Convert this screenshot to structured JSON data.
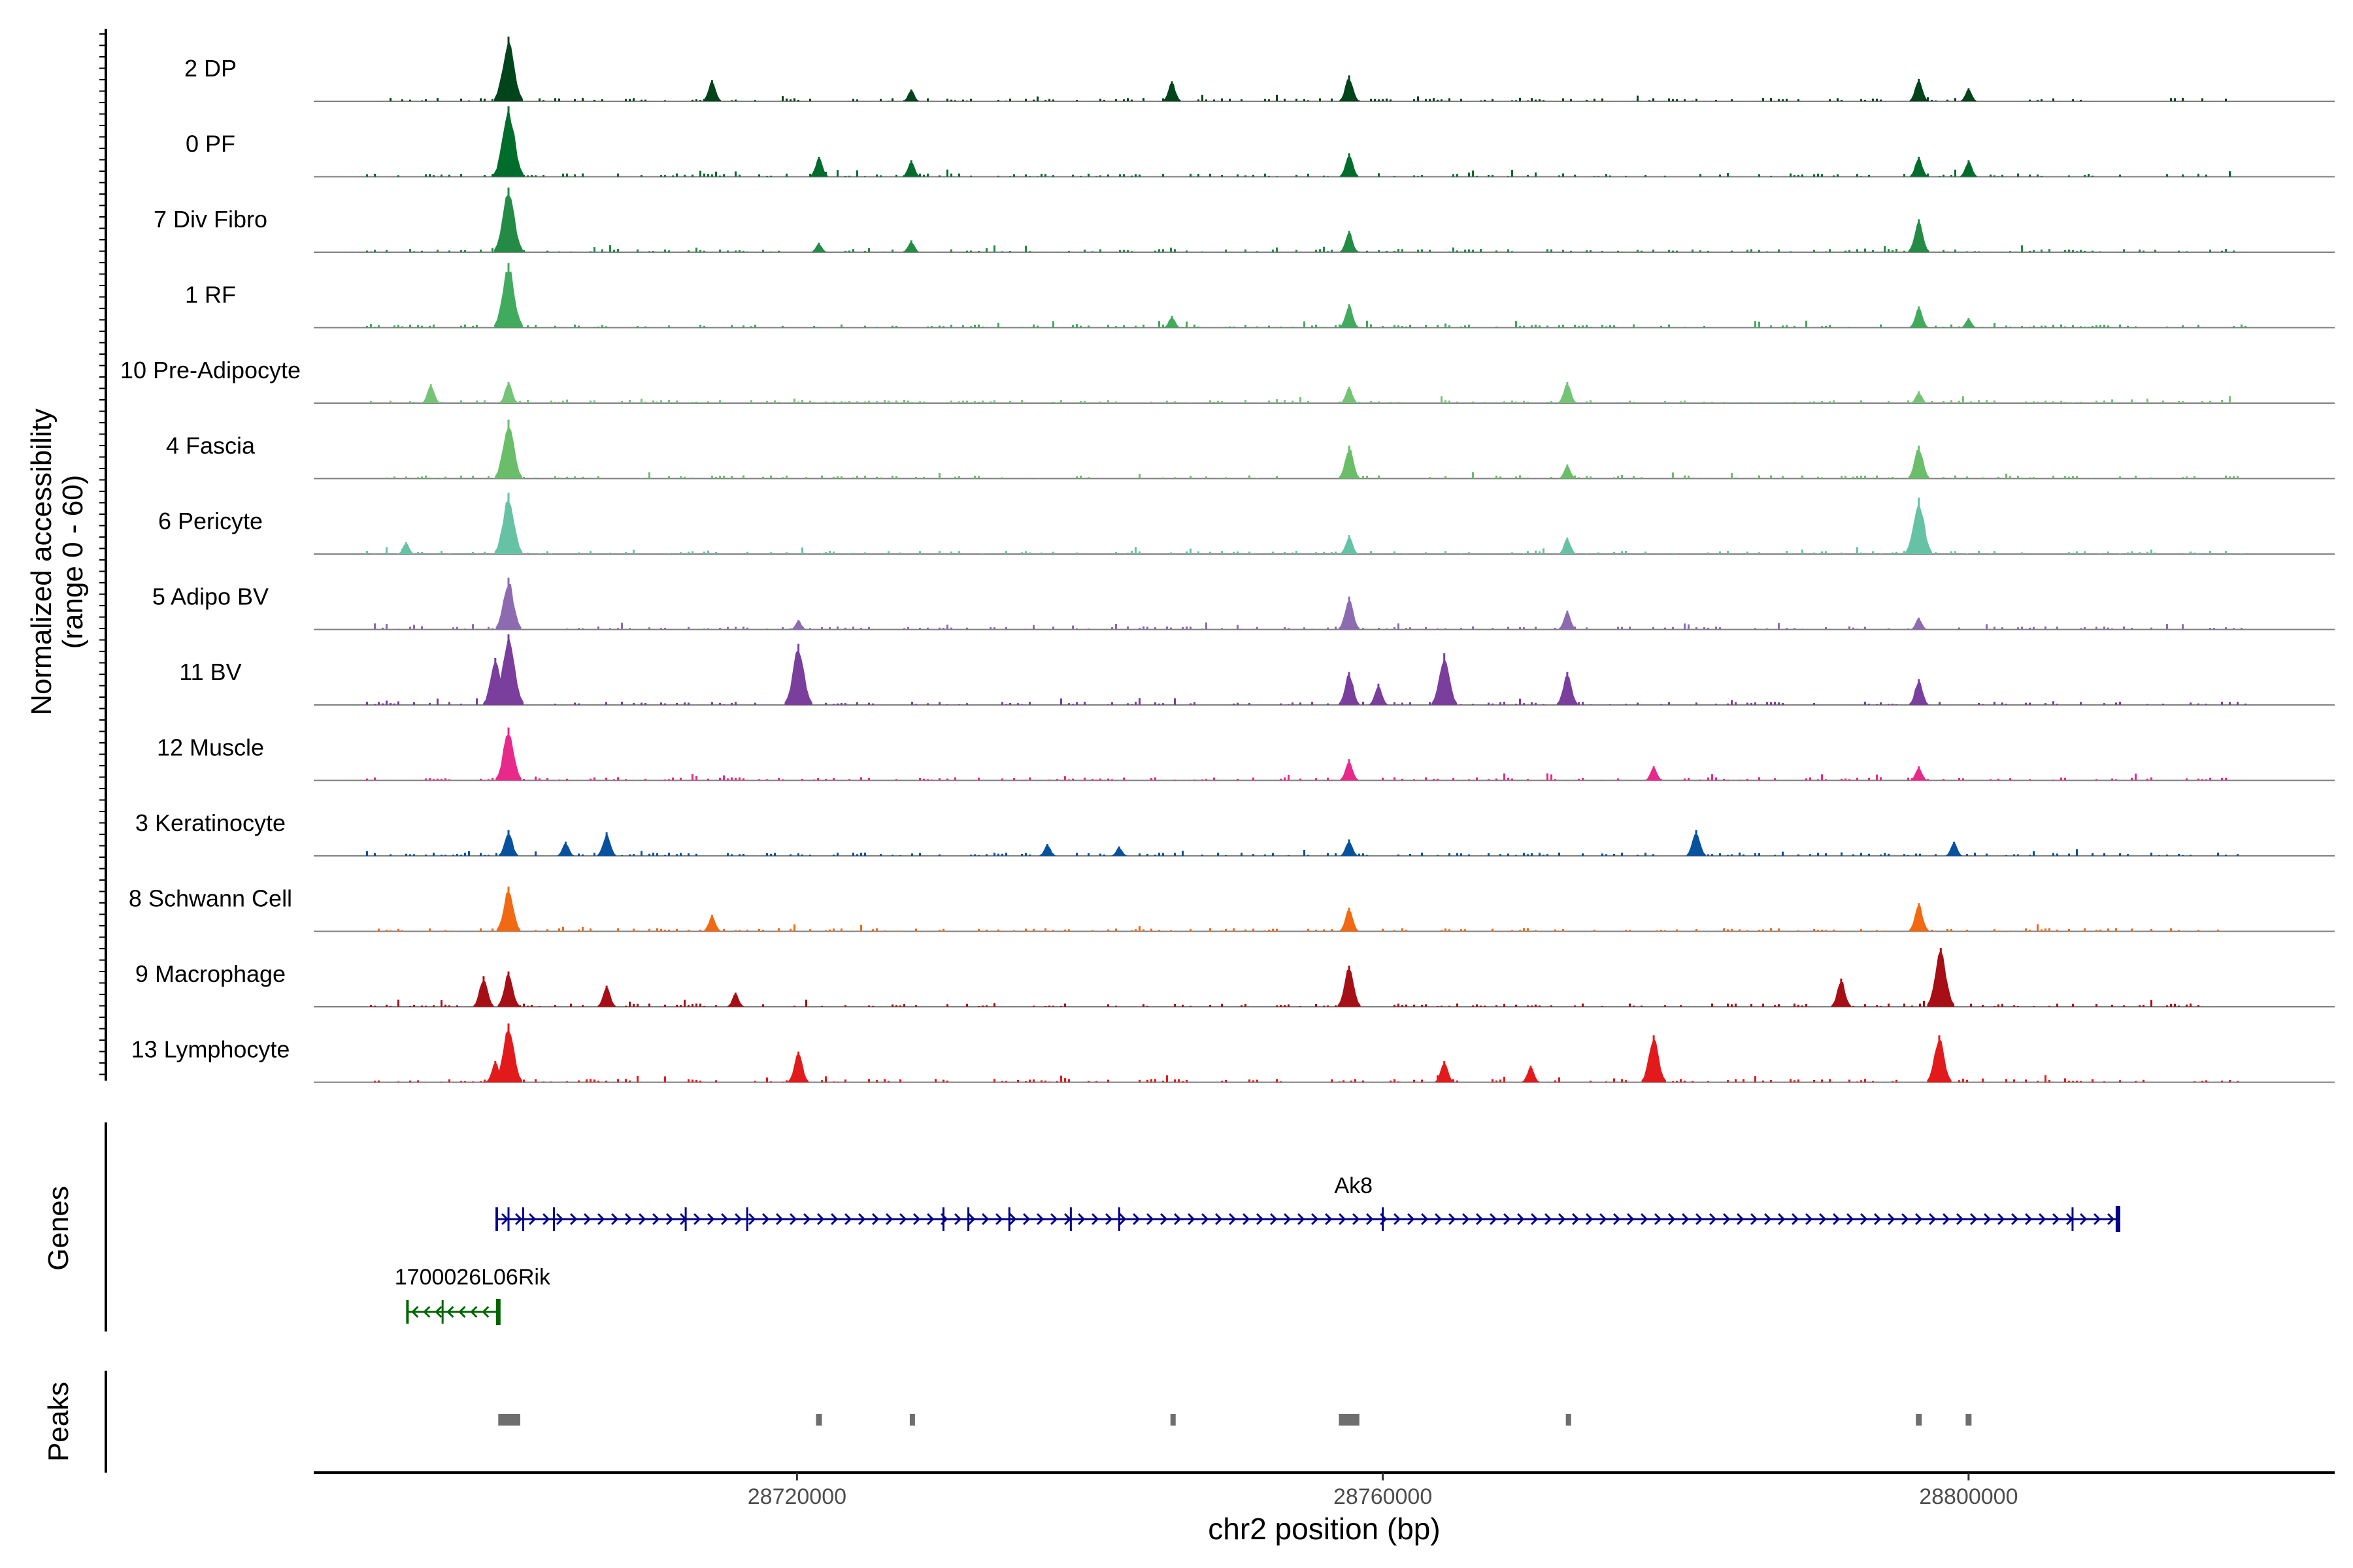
{
  "chart_data": {
    "type": "area",
    "title": "",
    "xlabel": "chr2 position (bp)",
    "ylabel_line1": "Normalized accessibility",
    "ylabel_line2": "(range 0 - 60)",
    "ylim": [
      0,
      60
    ],
    "xlim": [
      28687000,
      28825000
    ],
    "x_ticks": [
      28720000,
      28760000,
      28800000
    ],
    "x_tick_labels": [
      "28720000",
      "28760000",
      "28800000"
    ],
    "panel_labels": {
      "genes": "Genes",
      "peaks": "Peaks"
    },
    "tracks": [
      {
        "name": "2 DP",
        "color": "#00441b",
        "peaks": [
          {
            "pos": 28700300,
            "height": 55
          },
          {
            "pos": 28714200,
            "height": 18
          },
          {
            "pos": 28727800,
            "height": 10
          },
          {
            "pos": 28745600,
            "height": 17
          },
          {
            "pos": 28757700,
            "height": 22
          },
          {
            "pos": 28796600,
            "height": 19
          },
          {
            "pos": 28800000,
            "height": 11
          }
        ]
      },
      {
        "name": "0 PF",
        "color": "#006d2c",
        "peaks": [
          {
            "pos": 28700300,
            "height": 60
          },
          {
            "pos": 28721500,
            "height": 17
          },
          {
            "pos": 28727800,
            "height": 14
          },
          {
            "pos": 28757700,
            "height": 20
          },
          {
            "pos": 28796600,
            "height": 17
          },
          {
            "pos": 28800000,
            "height": 14
          }
        ]
      },
      {
        "name": "7 Div Fibro",
        "color": "#238b45",
        "peaks": [
          {
            "pos": 28700300,
            "height": 55
          },
          {
            "pos": 28721500,
            "height": 8
          },
          {
            "pos": 28727800,
            "height": 10
          },
          {
            "pos": 28757700,
            "height": 18
          },
          {
            "pos": 28796600,
            "height": 28
          }
        ]
      },
      {
        "name": "1 RF",
        "color": "#41ab5d",
        "peaks": [
          {
            "pos": 28700300,
            "height": 55
          },
          {
            "pos": 28745600,
            "height": 10
          },
          {
            "pos": 28757700,
            "height": 20
          },
          {
            "pos": 28796600,
            "height": 18
          },
          {
            "pos": 28800000,
            "height": 8
          }
        ]
      },
      {
        "name": "10 Pre-Adipocyte",
        "color": "#74c476",
        "peaks": [
          {
            "pos": 28695000,
            "height": 16
          },
          {
            "pos": 28700300,
            "height": 18
          },
          {
            "pos": 28757700,
            "height": 14
          },
          {
            "pos": 28772600,
            "height": 18
          },
          {
            "pos": 28796600,
            "height": 10
          }
        ]
      },
      {
        "name": "4 Fascia",
        "color": "#6abe6a",
        "peaks": [
          {
            "pos": 28700300,
            "height": 50
          },
          {
            "pos": 28757700,
            "height": 28
          },
          {
            "pos": 28772600,
            "height": 12
          },
          {
            "pos": 28796600,
            "height": 28
          }
        ]
      },
      {
        "name": "6 Pericyte",
        "color": "#66c2a4",
        "peaks": [
          {
            "pos": 28693300,
            "height": 10
          },
          {
            "pos": 28700300,
            "height": 52
          },
          {
            "pos": 28757700,
            "height": 16
          },
          {
            "pos": 28772600,
            "height": 14
          },
          {
            "pos": 28796600,
            "height": 48
          }
        ]
      },
      {
        "name": "5 Adipo BV",
        "color": "#8c6bb1",
        "peaks": [
          {
            "pos": 28700300,
            "height": 44
          },
          {
            "pos": 28720100,
            "height": 8
          },
          {
            "pos": 28757700,
            "height": 28
          },
          {
            "pos": 28772600,
            "height": 16
          },
          {
            "pos": 28796600,
            "height": 10
          }
        ]
      },
      {
        "name": "11 BV",
        "color": "#7a3e9d",
        "peaks": [
          {
            "pos": 28699400,
            "height": 40
          },
          {
            "pos": 28700300,
            "height": 60
          },
          {
            "pos": 28720100,
            "height": 52
          },
          {
            "pos": 28757700,
            "height": 28
          },
          {
            "pos": 28759700,
            "height": 18
          },
          {
            "pos": 28764200,
            "height": 44
          },
          {
            "pos": 28772600,
            "height": 28
          },
          {
            "pos": 28796600,
            "height": 22
          }
        ]
      },
      {
        "name": "12 Muscle",
        "color": "#e7298a",
        "peaks": [
          {
            "pos": 28700300,
            "height": 45
          },
          {
            "pos": 28757700,
            "height": 18
          },
          {
            "pos": 28778500,
            "height": 12
          },
          {
            "pos": 28796600,
            "height": 12
          }
        ]
      },
      {
        "name": "3 Keratinocyte",
        "color": "#08519c",
        "peaks": [
          {
            "pos": 28700300,
            "height": 22
          },
          {
            "pos": 28704200,
            "height": 12
          },
          {
            "pos": 28707000,
            "height": 20
          },
          {
            "pos": 28737100,
            "height": 10
          },
          {
            "pos": 28742000,
            "height": 8
          },
          {
            "pos": 28757700,
            "height": 14
          },
          {
            "pos": 28781400,
            "height": 22
          },
          {
            "pos": 28799000,
            "height": 12
          }
        ]
      },
      {
        "name": "8 Schwann Cell",
        "color": "#f16913",
        "peaks": [
          {
            "pos": 28700300,
            "height": 38
          },
          {
            "pos": 28714200,
            "height": 14
          },
          {
            "pos": 28757700,
            "height": 20
          },
          {
            "pos": 28796600,
            "height": 24
          }
        ]
      },
      {
        "name": "9 Macrophage",
        "color": "#a50f15",
        "peaks": [
          {
            "pos": 28698600,
            "height": 26
          },
          {
            "pos": 28700300,
            "height": 30
          },
          {
            "pos": 28707000,
            "height": 18
          },
          {
            "pos": 28715800,
            "height": 12
          },
          {
            "pos": 28757700,
            "height": 35
          },
          {
            "pos": 28791300,
            "height": 24
          },
          {
            "pos": 28798100,
            "height": 50
          }
        ]
      },
      {
        "name": "13 Lymphocyte",
        "color": "#e31a1c",
        "peaks": [
          {
            "pos": 28699400,
            "height": 18
          },
          {
            "pos": 28700300,
            "height": 50
          },
          {
            "pos": 28720100,
            "height": 26
          },
          {
            "pos": 28764200,
            "height": 18
          },
          {
            "pos": 28770100,
            "height": 14
          },
          {
            "pos": 28778500,
            "height": 40
          },
          {
            "pos": 28798000,
            "height": 40
          }
        ]
      }
    ],
    "genes": [
      {
        "name": "Ak8",
        "strand": "+",
        "start": 28699500,
        "end": 28810200,
        "color": "#00008b",
        "exons": [
          28700300,
          28701300,
          28703400,
          28712400,
          28716600,
          28730000,
          28731700,
          28734500,
          28738700,
          28742000,
          28760000,
          28807100
        ]
      },
      {
        "name": "1700026L06Rik",
        "strand": "-",
        "start": 28693400,
        "end": 28699600,
        "color": "#006400",
        "exons": [
          28695800
        ]
      }
    ],
    "peaks_track": [
      {
        "start": 28699600,
        "end": 28701100
      },
      {
        "start": 28721300,
        "end": 28721700
      },
      {
        "start": 28727700,
        "end": 28727900
      },
      {
        "start": 28745500,
        "end": 28745700
      },
      {
        "start": 28757000,
        "end": 28758400
      },
      {
        "start": 28772500,
        "end": 28772700
      },
      {
        "start": 28796400,
        "end": 28796800
      },
      {
        "start": 28799800,
        "end": 28800200
      }
    ]
  }
}
